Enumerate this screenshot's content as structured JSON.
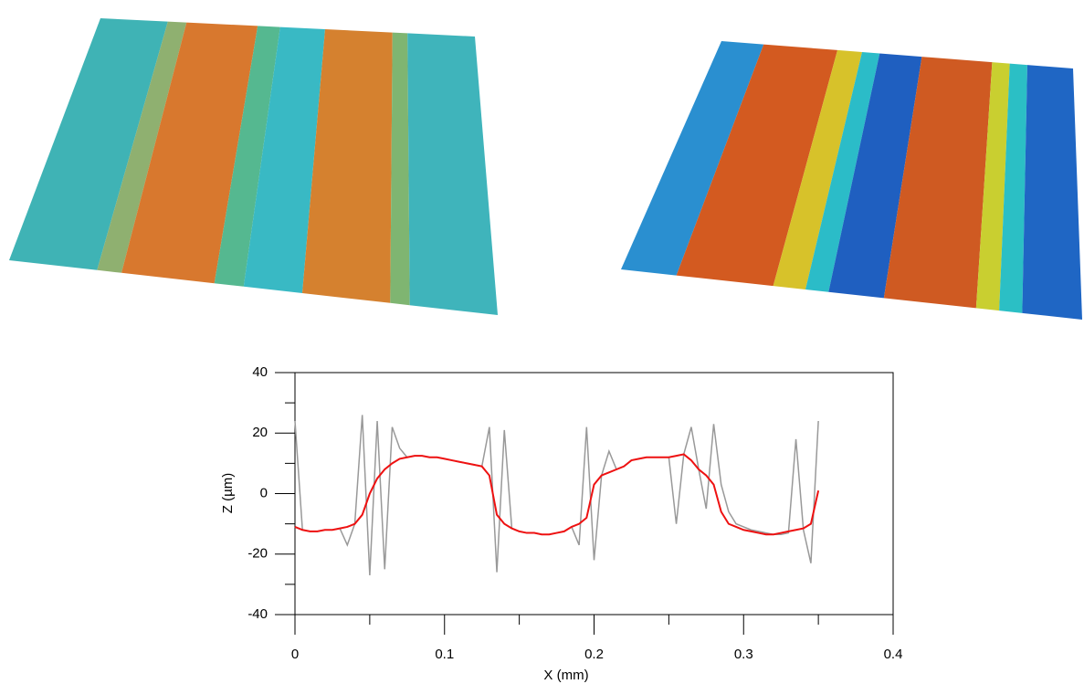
{
  "chart_data": {
    "type": "line",
    "x_label": "X (mm)",
    "y_label": "Z (µm)",
    "xlim": [
      0,
      0.4
    ],
    "xticks": [
      0,
      0.1,
      0.2,
      0.3,
      0.4
    ],
    "x_minor_ticks": [
      0.05,
      0.15,
      0.25,
      0.35
    ],
    "ylim": [
      -40,
      40
    ],
    "yticks": [
      40,
      20,
      0,
      -20,
      -40
    ],
    "y_minor_ticks": [
      30,
      10,
      -10,
      -30
    ],
    "x": [
      0,
      0.005,
      0.01,
      0.015,
      0.02,
      0.025,
      0.03,
      0.035,
      0.04,
      0.045,
      0.05,
      0.055,
      0.06,
      0.065,
      0.07,
      0.075,
      0.08,
      0.085,
      0.09,
      0.095,
      0.1,
      0.105,
      0.11,
      0.115,
      0.12,
      0.125,
      0.13,
      0.135,
      0.14,
      0.145,
      0.15,
      0.155,
      0.16,
      0.165,
      0.17,
      0.175,
      0.18,
      0.185,
      0.19,
      0.195,
      0.2,
      0.205,
      0.21,
      0.215,
      0.22,
      0.225,
      0.23,
      0.235,
      0.24,
      0.245,
      0.25,
      0.255,
      0.26,
      0.265,
      0.27,
      0.275,
      0.28,
      0.285,
      0.29,
      0.295,
      0.3,
      0.305,
      0.31,
      0.315,
      0.32,
      0.325,
      0.33,
      0.335,
      0.34,
      0.345,
      0.35
    ],
    "series": [
      {
        "color": "#999999",
        "values": [
          24,
          -12,
          -12.5,
          -12.5,
          -12,
          -12,
          -11.5,
          -17,
          -10,
          26,
          -27,
          24,
          -25,
          22,
          15,
          12,
          12.5,
          12.5,
          12,
          12,
          11.5,
          11,
          10.5,
          10,
          9.5,
          9,
          22,
          -26,
          21,
          -11.5,
          -12.5,
          -13,
          -13,
          -13.5,
          -13.5,
          -13,
          -12.5,
          -11,
          -17,
          22,
          -22,
          6,
          14,
          8,
          9,
          11,
          11.5,
          12,
          12,
          12,
          12,
          -10,
          13,
          22,
          8,
          -5,
          23,
          3,
          -6,
          -10,
          -11,
          -12,
          -12.5,
          -13,
          -13.5,
          -13.5,
          -13,
          18,
          -12,
          -23,
          24
        ]
      },
      {
        "color": "#ee1111",
        "values": [
          -11,
          -12,
          -12.5,
          -12.5,
          -12,
          -12,
          -11.5,
          -11,
          -10,
          -7,
          0,
          5,
          8,
          10,
          11.5,
          12,
          12.5,
          12.5,
          12,
          12,
          11.5,
          11,
          10.5,
          10,
          9.5,
          9,
          6,
          -7,
          -10,
          -11.5,
          -12.5,
          -13,
          -13,
          -13.5,
          -13.5,
          -13,
          -12.5,
          -11,
          -10,
          -8,
          3,
          6,
          7,
          8,
          9,
          11,
          11.5,
          12,
          12,
          12,
          12,
          12.5,
          13,
          11,
          8,
          6,
          3,
          -6,
          -10,
          -11,
          -12,
          -12.5,
          -13,
          -13.5,
          -13.5,
          -13,
          -12.5,
          -12,
          -11.5,
          -10,
          1
        ]
      }
    ]
  }
}
